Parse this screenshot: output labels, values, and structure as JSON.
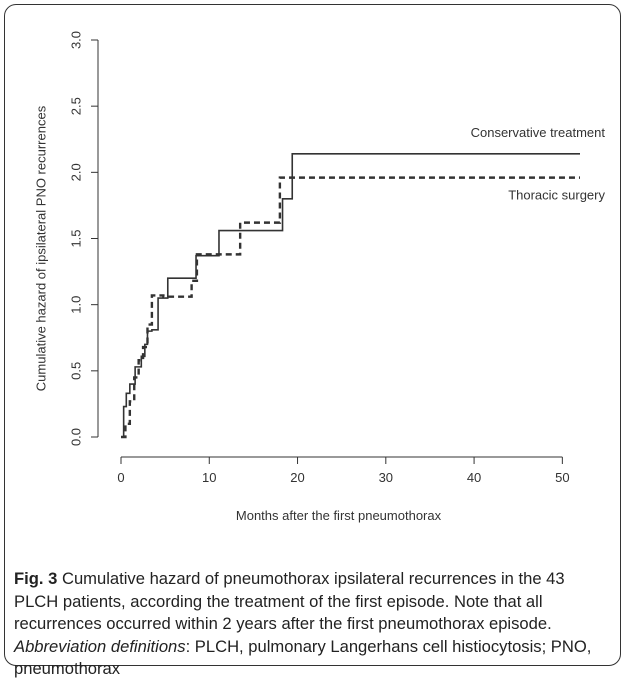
{
  "chart_data": {
    "type": "line",
    "title": "",
    "xlabel": "Months after the first pneumothorax",
    "ylabel": "Cumulative hazard of ipsilateral PNO recurrences",
    "xlim": [
      0,
      52
    ],
    "ylim": [
      0,
      3.0
    ],
    "xticks": [
      0,
      10,
      20,
      30,
      40,
      50
    ],
    "yticks": [
      0.0,
      0.5,
      1.0,
      1.5,
      2.0,
      2.5,
      3.0
    ],
    "xtick_labels": [
      "0",
      "10",
      "20",
      "30",
      "40",
      "50"
    ],
    "ytick_labels": [
      "0.0",
      "0.5",
      "1.0",
      "1.5",
      "2.0",
      "2.5",
      "3.0"
    ],
    "grid": false,
    "series": [
      {
        "name": "Conservative treatment",
        "style": "solid",
        "x": [
          0,
          0.3,
          0.6,
          1.0,
          1.6,
          2.3,
          2.7,
          3.0,
          3.5,
          4.2,
          5.3,
          8.5,
          11.1,
          18.3,
          19.4,
          52
        ],
        "y": [
          0.0,
          0.23,
          0.33,
          0.4,
          0.53,
          0.61,
          0.7,
          0.8,
          0.81,
          1.05,
          1.2,
          1.37,
          1.56,
          1.8,
          2.14,
          2.14
        ]
      },
      {
        "name": "Thoracic surgery",
        "style": "dashed",
        "x": [
          0,
          0.5,
          1.0,
          1.5,
          2.0,
          2.5,
          3.0,
          3.5,
          4.8,
          8.0,
          8.6,
          13.5,
          18.0,
          52
        ],
        "y": [
          0.0,
          0.1,
          0.27,
          0.45,
          0.58,
          0.68,
          0.85,
          1.07,
          1.06,
          1.18,
          1.38,
          1.62,
          1.96,
          1.96
        ]
      }
    ]
  },
  "caption": {
    "fig_label": "Fig. 3",
    "text_main": " Cumulative hazard of pneumothorax ipsilateral recurrences in the 43 PLCH patients, according the treatment of the first episode. Note that all recurrences occurred within 2 years after the first pneumothorax episode. ",
    "abbrev_label": "Abbreviation definitions",
    "abbrev_text": ": PLCH, pulmonary Langerhans cell histiocytosis; PNO, pneumothorax"
  }
}
